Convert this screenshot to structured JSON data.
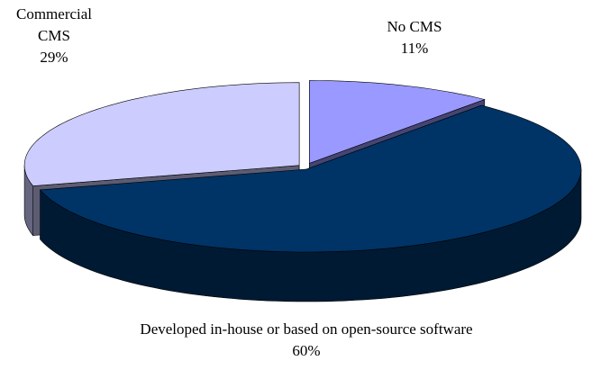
{
  "chart_data": {
    "type": "pie",
    "categories": [
      "No CMS",
      "Developed in-house or based on open-source software",
      "Commercial CMS"
    ],
    "values": [
      11,
      60,
      29
    ],
    "value_labels": [
      "11%",
      "60%",
      "29%"
    ],
    "colors": [
      "#9999ff",
      "#003366",
      "#ccccff"
    ]
  }
}
